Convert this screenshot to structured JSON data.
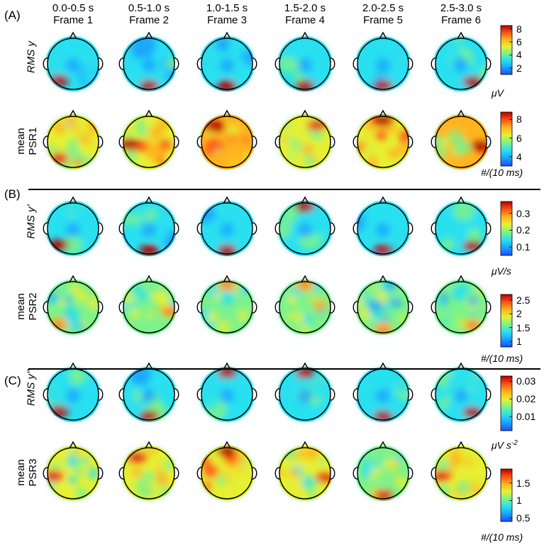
{
  "columns": [
    {
      "time": "0.0-0.5 s",
      "frame": "Frame 1"
    },
    {
      "time": "0.5-1.0 s",
      "frame": "Frame 2"
    },
    {
      "time": "1.0-1.5 s",
      "frame": "Frame 3"
    },
    {
      "time": "1.5-2.0 s",
      "frame": "Frame 4"
    },
    {
      "time": "2.0-2.5 s",
      "frame": "Frame 5"
    },
    {
      "time": "2.5-3.0 s",
      "frame": "Frame 6"
    }
  ],
  "panels": [
    {
      "label": "(A)",
      "rows": [
        {
          "label_main": "RMS y",
          "label_line2": "",
          "italic": true,
          "ticks": [
            "8",
            "6",
            "4",
            "2"
          ],
          "range": [
            1,
            8.5
          ],
          "unit_base": "μV",
          "unit_sup": "",
          "level_mean": [
            3.2,
            3.1,
            3.0,
            3.2,
            3.1,
            3.3
          ],
          "hotspot": [
            "low-left",
            "low-mid",
            "low-mid",
            "low-mid",
            "low-mid",
            "low-right"
          ]
        },
        {
          "label_main": "mean",
          "label_line2": "PSR1",
          "italic": false,
          "ticks": [
            "8",
            "6",
            "4"
          ],
          "range": [
            3,
            8.8
          ],
          "unit_base": "#/(10 ms)",
          "unit_sup": "",
          "level_mean": [
            6.3,
            6.6,
            6.9,
            6.3,
            6.7,
            6.9
          ],
          "hotspot": [
            "low-left",
            "left",
            "top-left",
            "top-right",
            "top-mid",
            "right"
          ]
        }
      ]
    },
    {
      "label": "(B)",
      "rows": [
        {
          "label_main": "RMS y’",
          "label_line2": "",
          "italic": true,
          "ticks": [
            "0.3",
            "0.2",
            "0.1"
          ],
          "range": [
            0.05,
            0.37
          ],
          "unit_base": "μV/s",
          "unit_sup": "",
          "level_mean": [
            0.15,
            0.14,
            0.14,
            0.15,
            0.14,
            0.16
          ],
          "hotspot": [
            "low-left",
            "low-mid",
            "low-mid",
            "top-mid",
            "low-mid",
            "low-right"
          ]
        },
        {
          "label_main": "mean",
          "label_line2": "PSR2",
          "italic": false,
          "ticks": [
            "2.5",
            "2",
            "1.5",
            "1"
          ],
          "range": [
            0.8,
            2.7
          ],
          "unit_base": "#/(10 ms)",
          "unit_sup": "",
          "level_mean": [
            1.5,
            1.6,
            1.6,
            1.6,
            1.5,
            1.5
          ],
          "hotspot": [
            "low-left",
            "right",
            "top-mid",
            "top-mid",
            "low-mid",
            "low-right"
          ]
        }
      ]
    },
    {
      "label": "(C)",
      "rows": [
        {
          "label_main": "RMS y’’",
          "label_line2": "",
          "italic": true,
          "ticks": [
            "0.03",
            "0.02",
            "0.01"
          ],
          "range": [
            0.002,
            0.033
          ],
          "unit_base": "μV s",
          "unit_sup": "-2",
          "level_mean": [
            0.012,
            0.011,
            0.011,
            0.012,
            0.011,
            0.012
          ],
          "hotspot": [
            "low-left",
            "low-mid",
            "top-mid",
            "top-mid",
            "low-mid",
            "low-right"
          ]
        },
        {
          "label_main": "mean",
          "label_line2": "PSR3",
          "italic": false,
          "ticks": [
            "1.5",
            "1",
            "0.5"
          ],
          "range": [
            0.4,
            1.9
          ],
          "unit_base": "#/(10 ms)",
          "unit_sup": "",
          "level_mean": [
            1.2,
            1.2,
            1.35,
            1.2,
            1.15,
            1.25
          ],
          "hotspot": [
            "left",
            "top-left",
            "top-mid",
            "right",
            "low-mid",
            "left"
          ]
        }
      ]
    }
  ],
  "colormap": [
    "#1a4dff",
    "#1aa0ff",
    "#28e0f0",
    "#7df28a",
    "#e6f032",
    "#ffb41e",
    "#ff5014",
    "#b40000"
  ]
}
